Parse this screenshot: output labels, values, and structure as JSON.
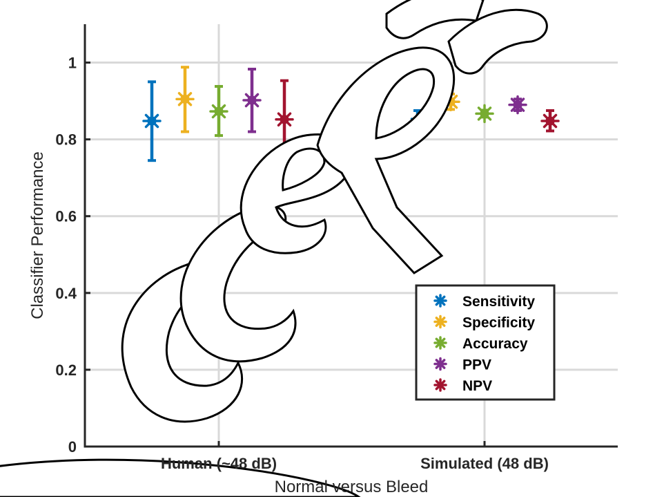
{
  "chart_data": {
    "type": "scatter",
    "xlabel": "Normal versus Bleed",
    "ylabel": "Classifier Performance",
    "categories": [
      "Human (~48 dB)",
      "Simulated (48 dB)"
    ],
    "ylim": [
      0,
      1.1
    ],
    "yticks": [
      "0",
      "0.2",
      "0.4",
      "0.6",
      "0.8",
      "1"
    ],
    "grid": true,
    "legend_position": "bottom-right",
    "series": [
      {
        "name": "Sensitivity",
        "color": "#0072BD",
        "values": [
          0.848,
          0.838
        ],
        "err_low": [
          0.745,
          0.802
        ],
        "err_high": [
          0.95,
          0.875
        ]
      },
      {
        "name": "Specificity",
        "color": "#EDB120",
        "values": [
          0.905,
          0.898
        ],
        "err_low": [
          0.82,
          0.878
        ],
        "err_high": [
          0.988,
          0.918
        ]
      },
      {
        "name": "Accuracy",
        "color": "#77AC30",
        "values": [
          0.873,
          0.867
        ],
        "err_low": [
          0.81,
          0.858
        ],
        "err_high": [
          0.938,
          0.876
        ]
      },
      {
        "name": "PPV",
        "color": "#7E2F8E",
        "values": [
          0.902,
          0.89
        ],
        "err_low": [
          0.82,
          0.875
        ],
        "err_high": [
          0.983,
          0.905
        ]
      },
      {
        "name": "NPV",
        "color": "#A2142F",
        "values": [
          0.852,
          0.848
        ],
        "err_low": [
          0.75,
          0.822
        ],
        "err_high": [
          0.953,
          0.875
        ]
      }
    ]
  }
}
